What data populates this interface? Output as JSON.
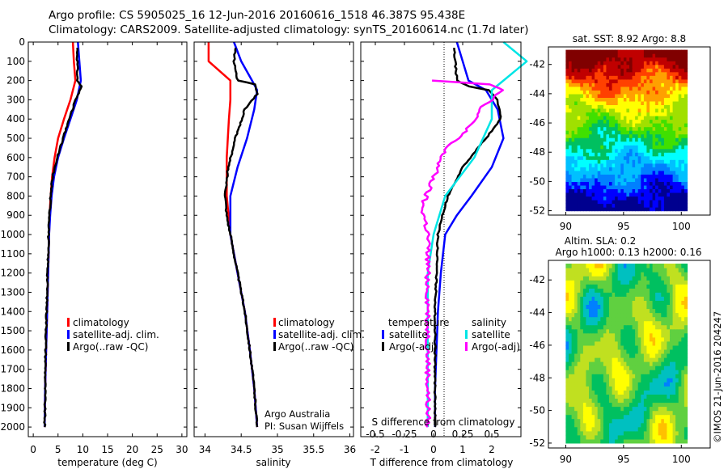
{
  "title": {
    "line1": "Argo profile: CS 5905025_16 12-Jun-2016 20160616_1518 46.387S 95.438E",
    "line2": "Climatology: CARS2009. Satellite-adjusted climatology: synTS_20160614.nc (1.7d later)"
  },
  "copyright": "©IMOS 21-Jun-2016 204247",
  "chart_data": [
    {
      "id": "temperature",
      "type": "line",
      "xlabel": "temperature (deg C)",
      "ylabel": "",
      "xlim": [
        -1,
        31
      ],
      "ylim": [
        2050,
        0
      ],
      "xticks": [
        0,
        5,
        10,
        15,
        20,
        25,
        30
      ],
      "yticks": [
        0,
        100,
        200,
        300,
        400,
        500,
        600,
        700,
        800,
        900,
        1000,
        1100,
        1200,
        1300,
        1400,
        1500,
        1600,
        1700,
        1800,
        1900,
        2000
      ],
      "legend": {
        "placement": "lower-center",
        "entries": [
          "climatology",
          "satellite-adj. clim.",
          "Argo(..raw -QC)"
        ]
      },
      "series": [
        {
          "name": "climatology",
          "color": "#ff0000",
          "points": [
            [
              8.0,
              0
            ],
            [
              8.2,
              100
            ],
            [
              8.5,
              200
            ],
            [
              7.5,
              300
            ],
            [
              6.2,
              400
            ],
            [
              5.0,
              500
            ],
            [
              4.3,
              600
            ],
            [
              3.8,
              700
            ],
            [
              3.5,
              800
            ],
            [
              3.3,
              900
            ],
            [
              3.2,
              1000
            ],
            [
              3.0,
              1200
            ],
            [
              2.8,
              1400
            ],
            [
              2.6,
              1600
            ],
            [
              2.4,
              1800
            ],
            [
              2.3,
              2000
            ]
          ]
        },
        {
          "name": "satellite-adj. clim.",
          "color": "#0000ff",
          "points": [
            [
              9.0,
              0
            ],
            [
              9.3,
              100
            ],
            [
              9.6,
              200
            ],
            [
              8.8,
              300
            ],
            [
              7.5,
              400
            ],
            [
              6.2,
              500
            ],
            [
              5.0,
              600
            ],
            [
              4.2,
              700
            ],
            [
              3.7,
              800
            ],
            [
              3.4,
              900
            ],
            [
              3.2,
              1000
            ],
            [
              3.0,
              1200
            ],
            [
              2.8,
              1400
            ],
            [
              2.6,
              1600
            ],
            [
              2.4,
              1800
            ],
            [
              2.3,
              2000
            ]
          ]
        },
        {
          "name": "Argo(..raw -QC)",
          "color": "#000000",
          "points": [
            [
              8.9,
              30
            ],
            [
              8.9,
              200
            ],
            [
              9.7,
              230
            ],
            [
              8.6,
              300
            ],
            [
              7.2,
              400
            ],
            [
              6.0,
              500
            ],
            [
              4.8,
              600
            ],
            [
              3.9,
              700
            ],
            [
              3.5,
              800
            ],
            [
              3.3,
              900
            ],
            [
              3.1,
              1000
            ],
            [
              2.9,
              1200
            ],
            [
              2.7,
              1400
            ],
            [
              2.5,
              1600
            ],
            [
              2.4,
              1800
            ],
            [
              2.3,
              2000
            ]
          ]
        }
      ]
    },
    {
      "id": "salinity",
      "type": "line",
      "xlabel": "salinity",
      "xlim": [
        33.85,
        36.05
      ],
      "ylim": [
        2050,
        0
      ],
      "xticks": [
        34,
        34.5,
        35,
        35.5,
        36
      ],
      "legend": {
        "placement": "lower-right",
        "entries": [
          "climatology",
          "satellite-adj. clim.",
          "Argo(..raw -QC)"
        ]
      },
      "annotation": [
        "Argo Australia",
        "PI: Susan Wijffels"
      ],
      "series": [
        {
          "name": "climatology",
          "color": "#ff0000",
          "points": [
            [
              34.05,
              0
            ],
            [
              34.05,
              100
            ],
            [
              34.35,
              200
            ],
            [
              34.35,
              300
            ],
            [
              34.33,
              400
            ],
            [
              34.3,
              600
            ],
            [
              34.3,
              800
            ],
            [
              34.35,
              1000
            ],
            [
              34.45,
              1200
            ],
            [
              34.55,
              1400
            ],
            [
              34.62,
              1600
            ],
            [
              34.68,
              1800
            ],
            [
              34.72,
              2000
            ]
          ]
        },
        {
          "name": "satellite-adj. clim.",
          "color": "#0000ff",
          "points": [
            [
              34.4,
              0
            ],
            [
              34.5,
              100
            ],
            [
              34.65,
              200
            ],
            [
              34.72,
              250
            ],
            [
              34.68,
              350
            ],
            [
              34.58,
              500
            ],
            [
              34.45,
              650
            ],
            [
              34.35,
              800
            ],
            [
              34.35,
              1000
            ],
            [
              34.45,
              1200
            ],
            [
              34.55,
              1400
            ],
            [
              34.62,
              1600
            ],
            [
              34.68,
              1800
            ],
            [
              34.72,
              2000
            ]
          ]
        },
        {
          "name": "Argo(..raw -QC)",
          "color": "#000000",
          "points": [
            [
              34.42,
              30
            ],
            [
              34.4,
              100
            ],
            [
              34.45,
              200
            ],
            [
              34.7,
              220
            ],
            [
              34.72,
              270
            ],
            [
              34.55,
              350
            ],
            [
              34.42,
              500
            ],
            [
              34.32,
              650
            ],
            [
              34.28,
              800
            ],
            [
              34.3,
              900
            ],
            [
              34.35,
              1000
            ],
            [
              34.45,
              1200
            ],
            [
              34.55,
              1400
            ],
            [
              34.62,
              1600
            ],
            [
              34.68,
              1800
            ],
            [
              34.72,
              2000
            ]
          ]
        }
      ]
    },
    {
      "id": "differences",
      "type": "line",
      "xlabel": "T difference from climatology",
      "xlabel_top": "S difference from climatology",
      "xlim": [
        -2.5,
        3
      ],
      "xticks": [
        -2,
        -1,
        0,
        1,
        2
      ],
      "xticks_top": [
        -0.5,
        -0.25,
        0,
        0.25,
        0.5
      ],
      "ylim": [
        2050,
        0
      ],
      "legend": {
        "placement": "lower-center",
        "groups": [
          {
            "title": "temperature",
            "entries": [
              "satellite",
              "Argo(-adj)"
            ]
          },
          {
            "title": "salinity",
            "entries": [
              "satellite",
              "Argo(-adj)"
            ]
          }
        ]
      },
      "series": [
        {
          "name": "satellite",
          "group": "temperature",
          "color": "#0000ff",
          "points": [
            [
              0.8,
              0
            ],
            [
              1.0,
              100
            ],
            [
              1.2,
              200
            ],
            [
              1.8,
              250
            ],
            [
              2.2,
              350
            ],
            [
              2.4,
              500
            ],
            [
              2.0,
              650
            ],
            [
              1.3,
              800
            ],
            [
              0.8,
              900
            ],
            [
              0.4,
              1000
            ],
            [
              0.25,
              1200
            ],
            [
              0.15,
              1400
            ],
            [
              0.1,
              1600
            ],
            [
              0.05,
              1800
            ],
            [
              0.05,
              2000
            ]
          ]
        },
        {
          "name": "Argo(-adj)",
          "group": "temperature",
          "color": "#000000",
          "points": [
            [
              0.7,
              30
            ],
            [
              0.8,
              200
            ],
            [
              1.2,
              230
            ],
            [
              1.9,
              250
            ],
            [
              2.2,
              300
            ],
            [
              2.3,
              400
            ],
            [
              1.8,
              500
            ],
            [
              1.0,
              650
            ],
            [
              0.5,
              800
            ],
            [
              0.3,
              900
            ],
            [
              0.15,
              1000
            ],
            [
              0.1,
              1200
            ],
            [
              0.05,
              1400
            ],
            [
              0.05,
              2000
            ]
          ]
        },
        {
          "name": "satellite",
          "group": "salinity",
          "color": "#00e5e5",
          "points": [
            [
              0.6,
              0
            ],
            [
              0.8,
              100
            ],
            [
              0.6,
              200
            ],
            [
              0.5,
              250
            ],
            [
              0.5,
              400
            ],
            [
              0.35,
              600
            ],
            [
              0.1,
              800
            ],
            [
              0.0,
              1000
            ],
            [
              -0.05,
              1200
            ],
            [
              -0.05,
              1400
            ],
            [
              -0.05,
              1600
            ],
            [
              -0.05,
              1800
            ],
            [
              -0.05,
              2000
            ]
          ]
        },
        {
          "name": "Argo(-adj)",
          "group": "salinity",
          "color": "#ff00ff",
          "points": [
            [
              0.0,
              200
            ],
            [
              0.5,
              220
            ],
            [
              0.6,
              250
            ],
            [
              0.4,
              350
            ],
            [
              0.3,
              450
            ],
            [
              0.1,
              550
            ],
            [
              0.0,
              700
            ],
            [
              -0.1,
              850
            ],
            [
              -0.05,
              1000
            ],
            [
              -0.05,
              1200
            ],
            [
              -0.05,
              1400
            ],
            [
              -0.05,
              1600
            ],
            [
              -0.05,
              1800
            ],
            [
              -0.05,
              2000
            ]
          ]
        }
      ]
    },
    {
      "id": "sst_map",
      "type": "heatmap",
      "title": "sat. SST: 8.92  Argo: 8.8",
      "xlim": [
        88.5,
        102.5
      ],
      "ylim": [
        -52.3,
        -40.8
      ],
      "xticks": [
        90,
        95,
        100
      ],
      "yticks": [
        -42,
        -44,
        -46,
        -48,
        -50,
        -52
      ],
      "colormap": [
        "#00008f",
        "#0000ff",
        "#0080ff",
        "#00c0ff",
        "#00ffff",
        "#00c060",
        "#40e000",
        "#a0e000",
        "#ffff00",
        "#ffa000",
        "#ff4000",
        "#c00000",
        "#800000"
      ]
    },
    {
      "id": "sla_map",
      "type": "heatmap",
      "title": "Altim. SLA: 0.2",
      "subtitle": "Argo h1000: 0.13  h2000: 0.16",
      "xlim": [
        88.5,
        102.5
      ],
      "ylim": [
        -52.3,
        -40.8
      ],
      "xticks": [
        90,
        95,
        100
      ],
      "yticks": [
        -42,
        -44,
        -46,
        -48,
        -50,
        -52
      ],
      "colormap": [
        "#0000ff",
        "#0080ff",
        "#00c0c0",
        "#00c060",
        "#60d040",
        "#c0e020",
        "#ffff00",
        "#ffc000",
        "#ff8000"
      ]
    }
  ]
}
